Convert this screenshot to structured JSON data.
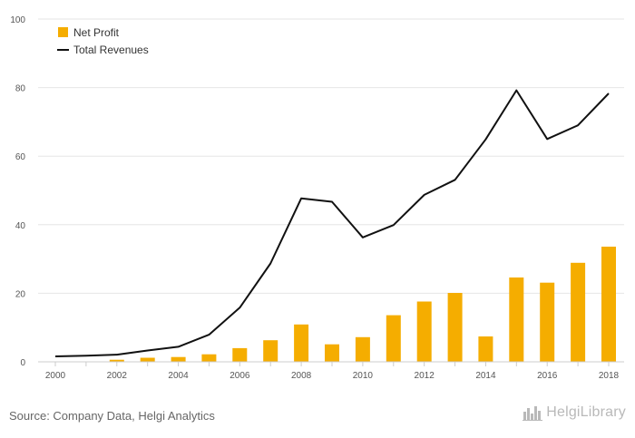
{
  "chart_data": {
    "type": "bar",
    "title": "",
    "xlabel": "",
    "ylabel": "",
    "x": [
      2000,
      2001,
      2002,
      2003,
      2004,
      2005,
      2006,
      2007,
      2008,
      2009,
      2010,
      2011,
      2012,
      2013,
      2014,
      2015,
      2016,
      2017,
      2018
    ],
    "x_tick_labels": [
      "2000",
      "2002",
      "2004",
      "2006",
      "2008",
      "2010",
      "2012",
      "2014",
      "2016",
      "2018"
    ],
    "ylim": [
      0,
      100
    ],
    "y_ticks": [
      "0",
      "20",
      "40",
      "60",
      "80",
      "100"
    ],
    "grid": true,
    "legend_position": "top-left",
    "series": [
      {
        "name": "Net Profit",
        "type": "bar",
        "color": "#f5ad00",
        "values": [
          0,
          0,
          0.6,
          1.2,
          1.4,
          2.2,
          4.0,
          6.3,
          10.9,
          5.1,
          7.2,
          13.6,
          17.6,
          20.1,
          7.4,
          24.6,
          23.1,
          28.9,
          33.6
        ]
      },
      {
        "name": "Total Revenues",
        "type": "line",
        "color": "#111111",
        "values": [
          1.6,
          1.8,
          2.1,
          3.3,
          4.4,
          7.9,
          15.8,
          28.7,
          47.7,
          46.7,
          36.3,
          39.9,
          48.7,
          53.1,
          64.9,
          79.2,
          65.0,
          69.0,
          78.3
        ]
      }
    ]
  },
  "footer": {
    "source": "Source: Company Data, Helgi Analytics",
    "brand": "HelgiLibrary"
  },
  "colors": {
    "grid": "#e6e6e6",
    "axis": "#cccccc",
    "tick_text": "#555555",
    "brand": "#b9b9b9"
  },
  "icons": {
    "brand_logo": "city-skyline-icon"
  }
}
